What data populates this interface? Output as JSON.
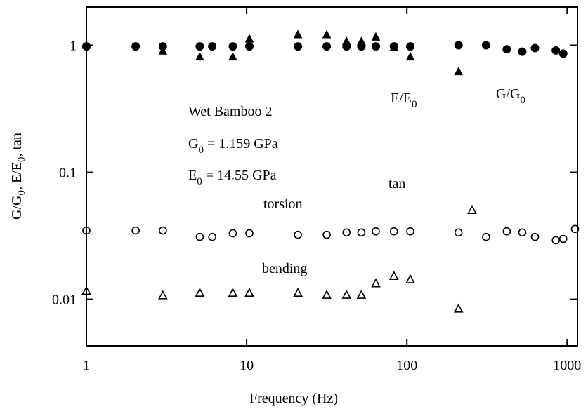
{
  "chart_data": {
    "type": "scatter",
    "x_label": "Frequency (Hz)",
    "y_label": [
      "G/G",
      "0",
      ", E/E",
      "0",
      ", tan"
    ],
    "xscale": "log",
    "yscale": "log",
    "xlim": [
      1,
      1160
    ],
    "ylim": [
      0.0043,
      2
    ],
    "xticks": [
      1,
      10,
      100,
      1000
    ],
    "yticks": [
      0.01,
      0.1,
      1
    ],
    "annotations": [
      [
        "Wet Bamboo 2"
      ],
      [
        "G",
        "0",
        " = 1.159 GPa"
      ],
      [
        "E",
        "0",
        " = 14.55 GPa"
      ],
      [
        "E/E",
        "0"
      ],
      [
        "G/G",
        "0"
      ],
      [
        "tan"
      ],
      [
        "torsion"
      ],
      [
        "bending"
      ]
    ],
    "series": [
      {
        "marker": "circle",
        "filled": true,
        "color": "#000000",
        "x": [
          1,
          2.03,
          3,
          5.1,
          6.1,
          8.2,
          10.4,
          20.9,
          31.6,
          42,
          52,
          64,
          83,
          105,
          210,
          312,
          420,
          525,
          630,
          850,
          945
        ],
        "values": [
          0.98,
          0.98,
          0.98,
          0.98,
          0.98,
          0.98,
          0.98,
          0.98,
          0.98,
          0.98,
          0.98,
          0.98,
          0.98,
          0.98,
          1.0,
          1.0,
          0.93,
          0.89,
          0.95,
          0.91,
          0.86
        ]
      },
      {
        "marker": "triangle",
        "filled": true,
        "color": "#000000",
        "x": [
          1,
          3,
          5.1,
          8.2,
          10.4,
          20.9,
          31.6,
          42,
          52,
          64,
          83,
          105,
          210
        ],
        "values": [
          1.0,
          0.9,
          0.81,
          0.81,
          1.12,
          1.21,
          1.21,
          1.07,
          1.07,
          1.16,
          0.96,
          0.81,
          0.62
        ]
      },
      {
        "marker": "circle",
        "filled": false,
        "color": "#000000",
        "x": [
          1,
          2.03,
          3,
          5.1,
          6.1,
          8.2,
          10.4,
          20.9,
          31.6,
          42,
          52,
          64,
          83,
          105,
          210,
          312,
          420,
          525,
          630,
          850,
          945,
          1120
        ],
        "values": [
          0.0348,
          0.0348,
          0.0348,
          0.031,
          0.031,
          0.0331,
          0.0331,
          0.0322,
          0.0322,
          0.0336,
          0.0336,
          0.0343,
          0.0343,
          0.0343,
          0.0336,
          0.031,
          0.0343,
          0.0336,
          0.031,
          0.0292,
          0.0299,
          0.0358
        ]
      },
      {
        "marker": "triangle",
        "filled": false,
        "color": "#000000",
        "x": [
          1,
          3,
          5.1,
          8.2,
          10.4,
          20.9,
          31.6,
          42,
          52,
          64,
          83,
          105,
          210,
          255
        ],
        "values": [
          0.0116,
          0.0107,
          0.0112,
          0.0112,
          0.0112,
          0.0112,
          0.0108,
          0.0108,
          0.0108,
          0.0133,
          0.0152,
          0.0143,
          0.0084,
          0.0502
        ]
      }
    ]
  }
}
